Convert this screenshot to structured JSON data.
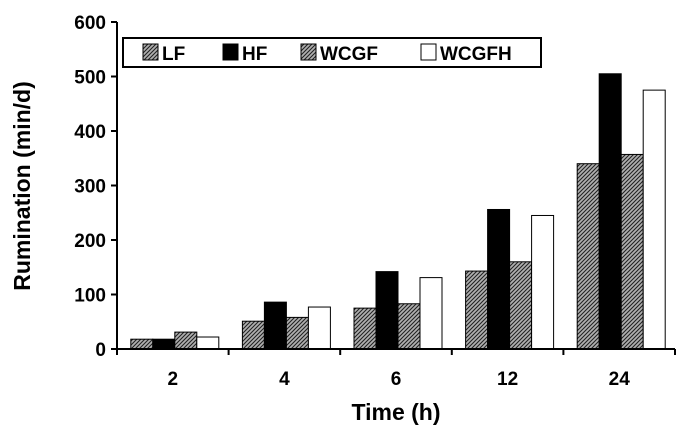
{
  "chart_data": {
    "type": "bar",
    "title": "",
    "xlabel": "Time (h)",
    "ylabel": "Rumination (min/d)",
    "categories": [
      "2",
      "4",
      "6",
      "12",
      "24"
    ],
    "ylim": [
      0,
      600
    ],
    "yticks": [
      0,
      100,
      200,
      300,
      400,
      500,
      600
    ],
    "legend_position": "top-left",
    "grid": false,
    "series": [
      {
        "name": "LF",
        "values": [
          18,
          51,
          75,
          143,
          340
        ],
        "color": "#808080",
        "pattern": "hatch"
      },
      {
        "name": "HF",
        "values": [
          18,
          86,
          142,
          256,
          505
        ],
        "color": "#000000",
        "pattern": "solid"
      },
      {
        "name": "WCGF",
        "values": [
          31,
          58,
          83,
          160,
          357
        ],
        "color": "#808080",
        "pattern": "hatch"
      },
      {
        "name": "WCGFH",
        "values": [
          22,
          77,
          131,
          245,
          475
        ],
        "color": "#ffffff",
        "pattern": "none"
      }
    ]
  }
}
